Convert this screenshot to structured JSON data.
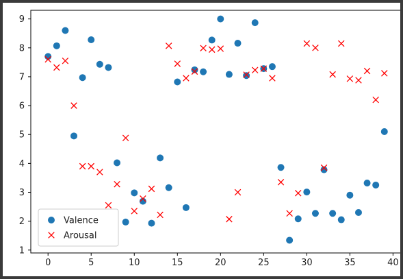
{
  "chart_data": {
    "type": "scatter",
    "title": "",
    "xlabel": "",
    "ylabel": "",
    "xlim": [
      -2,
      41
    ],
    "ylim": [
      0.9,
      9.3
    ],
    "x_ticks": [
      0,
      5,
      10,
      15,
      20,
      25,
      30,
      35,
      40
    ],
    "y_ticks": [
      1,
      2,
      3,
      4,
      5,
      6,
      7,
      8,
      9
    ],
    "grid": false,
    "legend_position": "lower-left",
    "x": [
      0,
      1,
      2,
      3,
      4,
      5,
      6,
      7,
      8,
      9,
      10,
      11,
      12,
      13,
      14,
      15,
      16,
      17,
      18,
      19,
      20,
      21,
      22,
      23,
      24,
      25,
      26,
      27,
      28,
      29,
      30,
      31,
      32,
      33,
      34,
      35,
      36,
      37,
      38,
      39
    ],
    "series": [
      {
        "name": "Valence",
        "marker": "circle",
        "color": "#1f77b4",
        "values": [
          7.7,
          8.07,
          8.6,
          4.95,
          6.97,
          8.28,
          7.43,
          7.32,
          4.02,
          1.97,
          2.98,
          2.69,
          1.93,
          4.19,
          3.16,
          6.82,
          2.47,
          7.24,
          7.17,
          8.27,
          9.0,
          7.08,
          8.16,
          7.04,
          8.87,
          7.28,
          7.35,
          3.86,
          1.34,
          2.08,
          3.01,
          2.27,
          3.78,
          2.27,
          2.05,
          2.9,
          2.3,
          3.32,
          3.25,
          5.1
        ]
      },
      {
        "name": "Arousal",
        "marker": "x",
        "color": "#ff0000",
        "values": [
          7.6,
          7.32,
          7.55,
          6.0,
          3.9,
          3.9,
          3.7,
          2.55,
          3.28,
          4.88,
          2.35,
          2.78,
          3.12,
          2.22,
          8.07,
          7.45,
          6.95,
          7.18,
          7.99,
          7.94,
          7.97,
          2.07,
          3.0,
          7.07,
          7.23,
          7.28,
          6.95,
          3.35,
          2.27,
          2.97,
          8.15,
          8.0,
          3.85,
          7.08,
          8.15,
          6.93,
          6.88,
          7.2,
          6.2,
          7.12
        ]
      }
    ]
  }
}
